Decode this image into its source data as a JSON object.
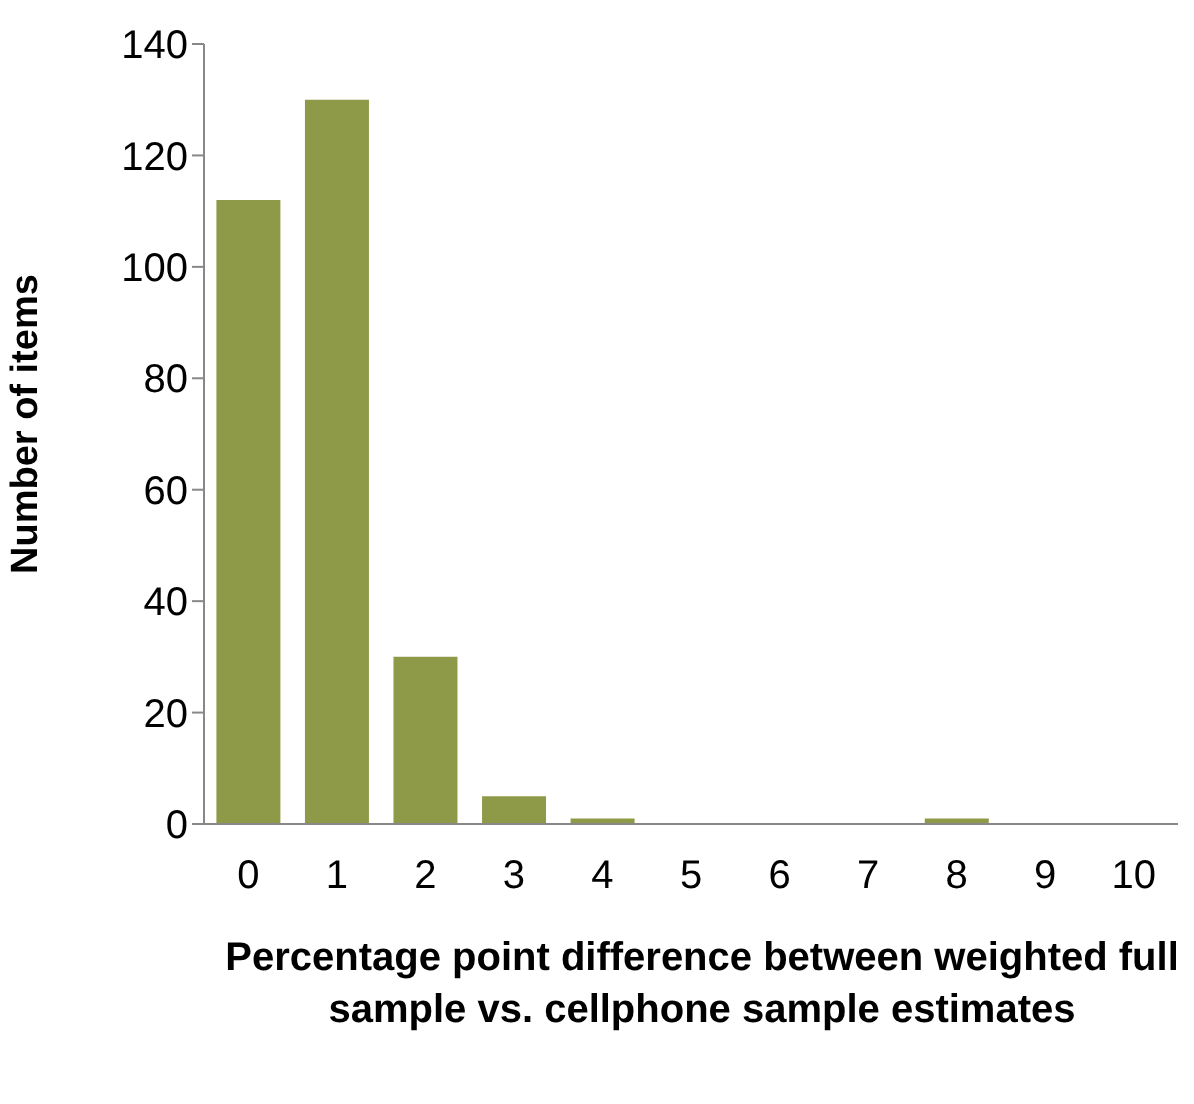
{
  "chart_data": {
    "type": "bar",
    "xlabel": "Percentage point difference between weighted full sample vs. cellphone sample estimates",
    "ylabel": "Number of items",
    "categories": [
      "0",
      "1",
      "2",
      "3",
      "4",
      "5",
      "6",
      "7",
      "8",
      "9",
      "10"
    ],
    "values": [
      112,
      130,
      30,
      5,
      1,
      0,
      0,
      0,
      1,
      0,
      0
    ],
    "color": "#8f9a48",
    "ylim": [
      0,
      140
    ],
    "yticks": [
      0,
      20,
      40,
      60,
      80,
      100,
      120,
      140
    ],
    "grid": false,
    "legend": false
  }
}
